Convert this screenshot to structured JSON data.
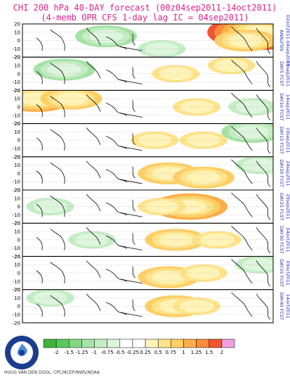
{
  "header": {
    "title_line1": "CHI 200 hPa 40-DAY forecast (00z04sep2011-14oct2011)",
    "title_line2": "(4-memb OPR CFS 1-day lag IC = 04sep2011)"
  },
  "credit": "HUUG VAN DEN DOOL, CPC/NCEP/NWS/NOAA",
  "logo": {
    "text": "NATIONAL WEATHER SERVICE",
    "icon": "nws-logo-icon"
  },
  "colors": {
    "neg_2": "#3cb43c",
    "neg_1_5": "#5ac85a",
    "neg_1_25": "#82d782",
    "neg_1": "#a6e3a6",
    "neg_0_75": "#c4edc4",
    "neg_0_5": "#ddf5dd",
    "neg_0_25": "#ffffff",
    "pos_0_25": "#ffffff",
    "pos_0_5": "#fff3b8",
    "pos_0_75": "#ffe38a",
    "pos_1": "#ffcf66",
    "pos_1_25": "#ffae48",
    "pos_1_5": "#ff8a3a",
    "pos_2": "#f0552f",
    "over": "#f0a0e0",
    "map_line": "#000000",
    "frame": "#000000",
    "side_label": "#2a2ab8"
  },
  "chart_data": {
    "type": "heatmap",
    "title": "CHI 200 hPa 40-DAY forecast (00z04sep2011-14oct2011)",
    "subtitle": "(4-memb OPR CFS 1-day lag IC = 04sep2011)",
    "y_ticks": [
      20,
      10,
      0,
      -10,
      -20
    ],
    "ylim": [
      -20,
      20
    ],
    "longitude_range": "0E-360E tropical belt",
    "panels": [
      {
        "label_top": "ANALYSIS",
        "label_date": "02oct2011 04sep2011",
        "anomalies": [
          {
            "lon": 340,
            "lat": 10,
            "value": 1.5
          },
          {
            "lon": 320,
            "lat": 0,
            "value": 0.75
          },
          {
            "lon": 120,
            "lat": 5,
            "value": -0.75
          },
          {
            "lon": 200,
            "lat": -10,
            "value": -0.5
          }
        ]
      },
      {
        "label_top": "DAY5 FCST",
        "label_date": "09sep2011",
        "anomalies": [
          {
            "lon": 220,
            "lat": 0,
            "value": 0.5
          },
          {
            "lon": 300,
            "lat": 10,
            "value": 0.5
          },
          {
            "lon": 60,
            "lat": 5,
            "value": -0.75
          }
        ]
      },
      {
        "label_top": "DAY10 FCST",
        "label_date": "14sep2011",
        "anomalies": [
          {
            "lon": 20,
            "lat": 10,
            "value": 1.0
          },
          {
            "lon": 70,
            "lat": 10,
            "value": 0.75
          },
          {
            "lon": 250,
            "lat": 0,
            "value": 0.5
          },
          {
            "lon": 330,
            "lat": 0,
            "value": -0.5
          }
        ]
      },
      {
        "label_top": "DAY15 FCST",
        "label_date": "19sep2011",
        "anomalies": [
          {
            "lon": 190,
            "lat": 0,
            "value": 0.5
          },
          {
            "lon": 260,
            "lat": 0,
            "value": 0.5
          },
          {
            "lon": 330,
            "lat": 10,
            "value": -0.75
          }
        ]
      },
      {
        "label_top": "DAY20 FCST",
        "label_date": "24sep2011",
        "anomalies": [
          {
            "lon": 210,
            "lat": 0,
            "value": 0.75
          },
          {
            "lon": 260,
            "lat": -5,
            "value": 0.75
          },
          {
            "lon": 340,
            "lat": 10,
            "value": -0.5
          }
        ]
      },
      {
        "label_top": "DAY25 FCST",
        "label_date": "29sep2011",
        "anomalies": [
          {
            "lon": 240,
            "lat": 0,
            "value": 1.0
          },
          {
            "lon": 200,
            "lat": 0,
            "value": 0.5
          },
          {
            "lon": 40,
            "lat": 0,
            "value": -0.5
          }
        ]
      },
      {
        "label_top": "DAY30 FCST",
        "label_date": "04oct2011",
        "anomalies": [
          {
            "lon": 220,
            "lat": 0,
            "value": 0.75
          },
          {
            "lon": 280,
            "lat": 0,
            "value": 0.5
          },
          {
            "lon": 100,
            "lat": 0,
            "value": -0.5
          }
        ]
      },
      {
        "label_top": "DAY35 FCST",
        "label_date": "09oct2011",
        "anomalies": [
          {
            "lon": 210,
            "lat": -5,
            "value": 0.75
          },
          {
            "lon": 260,
            "lat": 0,
            "value": 0.5
          },
          {
            "lon": 340,
            "lat": 10,
            "value": -0.5
          }
        ]
      },
      {
        "label_top": "DAY40 FCST",
        "label_date": "14oct2011",
        "anomalies": [
          {
            "lon": 220,
            "lat": 0,
            "value": 0.75
          },
          {
            "lon": 250,
            "lat": 0,
            "value": 0.5
          },
          {
            "lon": 40,
            "lat": 10,
            "value": -0.5
          }
        ]
      }
    ],
    "legend": {
      "ticks": [
        "-2",
        "-1.5",
        "-1.25",
        "-1",
        "-0.75",
        "-0.5",
        "-0.25",
        "0.25",
        "0.5",
        "0.75",
        "1",
        "1.25",
        "1.5",
        "2"
      ]
    }
  }
}
